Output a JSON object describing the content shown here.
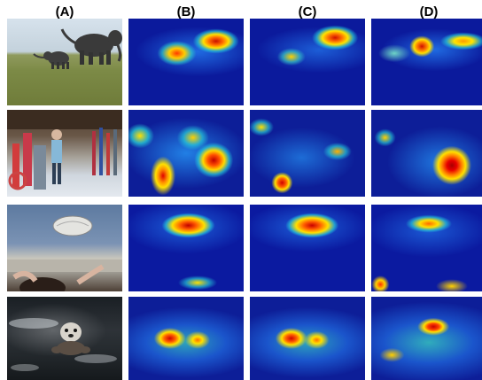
{
  "figure": {
    "column_labels": [
      "(A)",
      "(B)",
      "(C)",
      "(D)"
    ],
    "rows": [
      {
        "subject": "elephants"
      },
      {
        "subject": "ski-shop"
      },
      {
        "subject": "football"
      },
      {
        "subject": "otter"
      }
    ]
  },
  "colors": {
    "heatmap_low": "#0b1a9c",
    "heatmap_mid": "#28dcdc",
    "heatmap_high": "#c81000"
  }
}
